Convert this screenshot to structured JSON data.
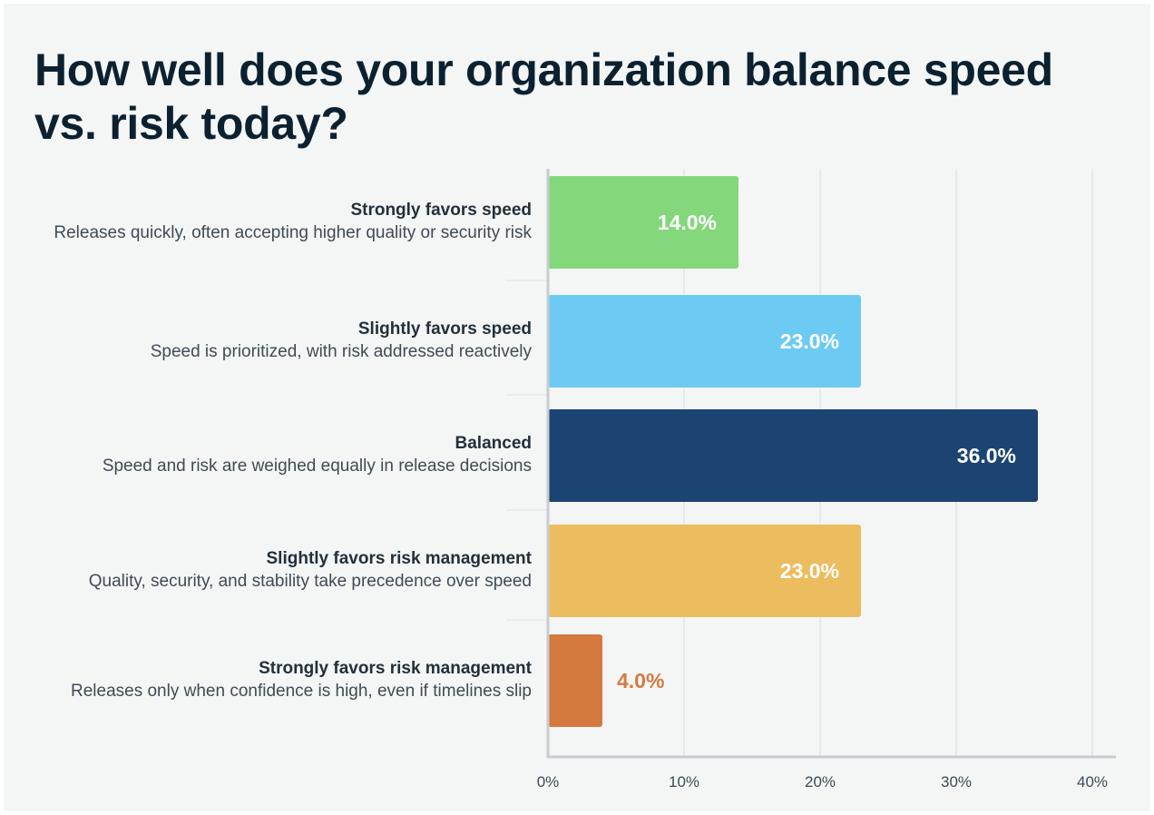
{
  "chart_data": {
    "type": "bar",
    "orientation": "horizontal",
    "title": "How well does your organization balance speed vs. risk today?",
    "categories": [
      {
        "label": "Strongly favors speed",
        "description": "Releases quickly, often accepting higher quality or security risk",
        "value": 14.0,
        "value_label": "14.0%",
        "color": "#84d77a"
      },
      {
        "label": "Slightly favors speed",
        "description": "Speed is prioritized, with risk addressed reactively",
        "value": 23.0,
        "value_label": "23.0%",
        "color": "#6dcaf2"
      },
      {
        "label": "Balanced",
        "description": "Speed and risk are weighed equally in release decisions",
        "value": 36.0,
        "value_label": "36.0%",
        "color": "#1b4472"
      },
      {
        "label": "Slightly favors risk management",
        "description": "Quality, security, and stability take precedence over speed",
        "value": 23.0,
        "value_label": "23.0%",
        "color": "#ecbd5e"
      },
      {
        "label": "Strongly favors risk management",
        "description": "Releases only when confidence is high, even if timelines slip",
        "value": 4.0,
        "value_label": "4.0%",
        "color": "#d47a3f"
      }
    ],
    "xlim": [
      0,
      40
    ],
    "x_ticks": [
      0,
      10,
      20,
      30,
      40
    ],
    "x_tick_labels": [
      "0%",
      "10%",
      "20%",
      "30%",
      "40%"
    ],
    "grid": true,
    "legend": "none"
  }
}
